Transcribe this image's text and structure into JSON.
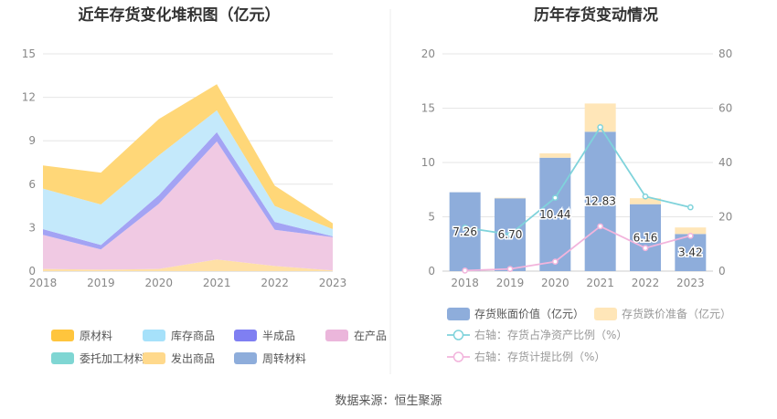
{
  "footer": {
    "source": "数据来源：恒生聚源"
  },
  "chart_data": [
    {
      "type": "area",
      "title": "近年存货变化堆积图（亿元）",
      "x": [
        "2018",
        "2019",
        "2020",
        "2021",
        "2022",
        "2023"
      ],
      "ylim": [
        0,
        15
      ],
      "yticks": [
        0,
        3,
        6,
        9,
        12,
        15
      ],
      "grid": true,
      "legend_position": "bottom",
      "series": [
        {
          "name": "发出商品",
          "color": "#FFE0A6",
          "values": [
            0.15,
            0.1,
            0.15,
            0.8,
            0.35,
            0.05
          ]
        },
        {
          "name": "在产品",
          "color": "#F0C9E3",
          "values": [
            2.35,
            1.4,
            4.5,
            8.15,
            2.5,
            2.3
          ]
        },
        {
          "name": "半成品",
          "color": "#A3A3F4",
          "values": [
            0.4,
            0.3,
            0.6,
            0.65,
            0.55,
            0.05
          ]
        },
        {
          "name": "库存商品",
          "color": "#C4E9FB",
          "values": [
            2.8,
            2.8,
            2.75,
            1.5,
            1.1,
            0.5
          ]
        },
        {
          "name": "原材料",
          "color": "#FFD778",
          "values": [
            1.6,
            2.2,
            2.5,
            1.8,
            1.4,
            0.4
          ]
        },
        {
          "name": "委托加工材料",
          "color": "#89D7D4",
          "values": [
            0,
            0,
            0,
            0,
            0,
            0
          ]
        },
        {
          "name": "周转材料",
          "color": "#8EADDB",
          "values": [
            0,
            0,
            0,
            0,
            0,
            0
          ]
        }
      ],
      "legend": [
        {
          "name": "原材料",
          "color": "#FFC53D"
        },
        {
          "name": "库存商品",
          "color": "#A6E1FA"
        },
        {
          "name": "半成品",
          "color": "#7F7FF2"
        },
        {
          "name": "在产品",
          "color": "#EBB6DB"
        },
        {
          "name": "委托加工材料",
          "color": "#7FD6D3"
        },
        {
          "name": "发出商品",
          "color": "#FFD98C"
        },
        {
          "name": "周转材料",
          "color": "#8EADDB"
        }
      ]
    },
    {
      "type": "bar",
      "title": "历年存货变动情况",
      "categories": [
        "2018",
        "2019",
        "2020",
        "2021",
        "2022",
        "2023"
      ],
      "ylim": [
        0,
        20
      ],
      "yticks": [
        0,
        5,
        10,
        15,
        20
      ],
      "y2lim": [
        0,
        80
      ],
      "y2ticks": [
        0,
        20,
        40,
        60,
        80
      ],
      "grid": true,
      "legend_position": "bottom",
      "bar_series": [
        {
          "name": "存货账面价值（亿元）",
          "color": "#8EADDB",
          "values": [
            7.26,
            6.7,
            10.44,
            12.83,
            6.16,
            3.42
          ],
          "labels": [
            "7.26",
            "6.70",
            "10.44",
            "12.83",
            "6.16",
            "3.42"
          ]
        },
        {
          "name": "存货跌价准备（亿元）",
          "color": "#FFE6B8",
          "values": [
            0,
            0.05,
            0.4,
            2.6,
            0.55,
            0.6
          ]
        }
      ],
      "line_series": [
        {
          "name": "右轴：存货占净资产比例（%）",
          "color": "#7FD3DB",
          "values": [
            16,
            13.5,
            27,
            53,
            27.5,
            23.5
          ]
        },
        {
          "name": "右轴：存货计提比例（%）",
          "color": "#F2B4DC",
          "values": [
            0.2,
            0.8,
            3.5,
            16.5,
            8.5,
            13
          ]
        }
      ]
    }
  ]
}
